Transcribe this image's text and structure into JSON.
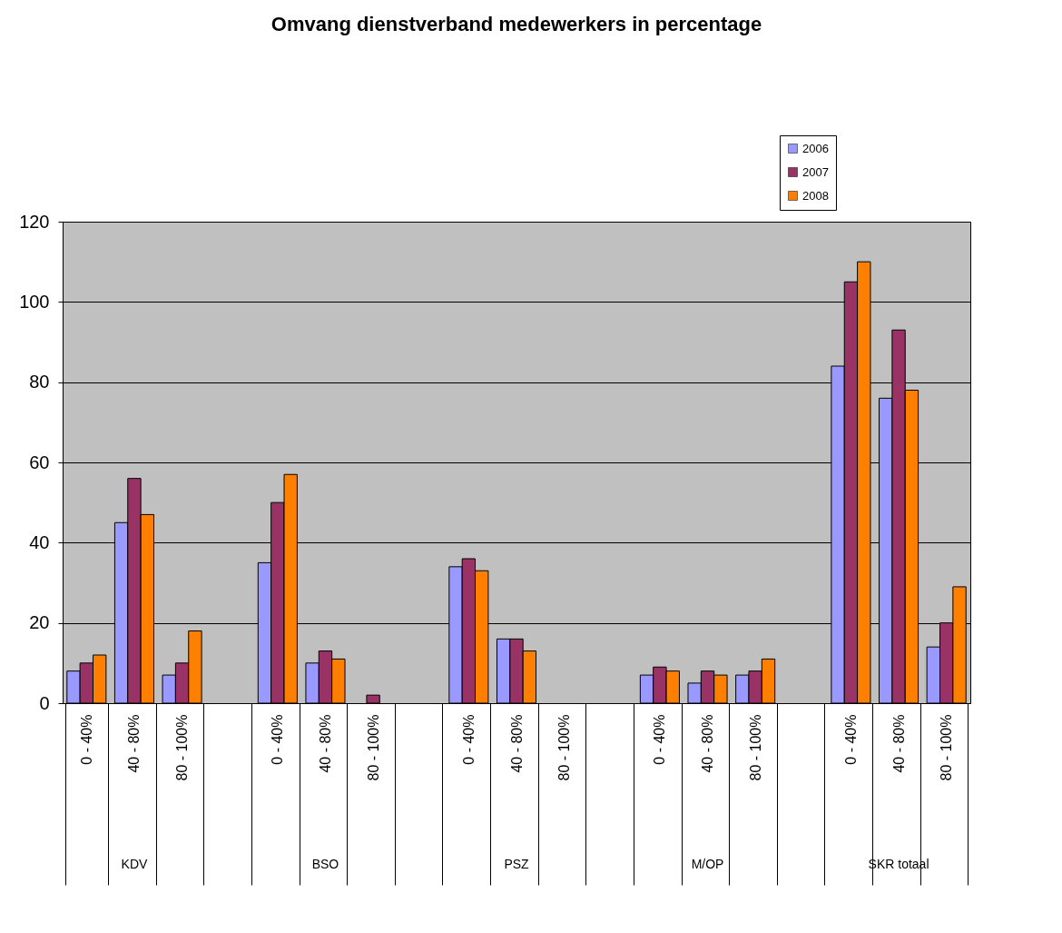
{
  "chart_data": {
    "type": "bar",
    "title": "Omvang dienstverband medewerkers in percentage",
    "categories": [
      "0 -  40%",
      "40 -  80%",
      "80 - 100%",
      null,
      "0 -  40%",
      "40 -  80%",
      "80 - 100%",
      null,
      "0 -  40%",
      "40 -  80%",
      "80 - 100%",
      null,
      "0 -  40%",
      "40 -  80%",
      "80 - 100%",
      null,
      "0 -  40%",
      "40 -  80%",
      "80 - 100%"
    ],
    "series": [
      {
        "name": "2006",
        "color": "#9999ff",
        "values": [
          8,
          45,
          7,
          null,
          35,
          10,
          0,
          null,
          34,
          16,
          0,
          null,
          7,
          5,
          7,
          null,
          84,
          76,
          14
        ]
      },
      {
        "name": "2007",
        "color": "#993366",
        "values": [
          10,
          56,
          10,
          null,
          50,
          13,
          2,
          null,
          36,
          16,
          0,
          null,
          9,
          8,
          8,
          null,
          105,
          93,
          20
        ]
      },
      {
        "name": "2008",
        "color": "#ff8000",
        "values": [
          12,
          47,
          18,
          null,
          57,
          11,
          0,
          null,
          33,
          13,
          0,
          null,
          8,
          7,
          11,
          null,
          110,
          78,
          29
        ]
      }
    ],
    "annotations": [
      "KDV",
      "BSO",
      "PSZ",
      "M/OP",
      "SKR totaal"
    ],
    "ylim": [
      0,
      120
    ],
    "yticks": [
      0,
      20,
      40,
      60,
      80,
      100,
      120
    ],
    "grid": "y",
    "legend": "top right"
  }
}
